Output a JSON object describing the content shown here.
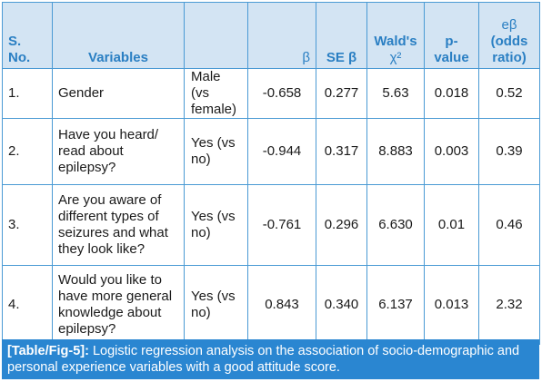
{
  "table": {
    "headers": {
      "sno": "S. No.",
      "variables": "Variables",
      "level": "",
      "beta": "β",
      "se_beta": "SE β",
      "wald_line1": "Wald's",
      "wald_line2": "χ²",
      "pvalue": "p-value",
      "eb_line1": "eβ",
      "eb_line2": "(odds ratio)"
    },
    "rows": [
      {
        "sno": "1.",
        "variable": "Gender",
        "level": "Male (vs female)",
        "beta": "-0.658",
        "se": "0.277",
        "wald": "5.63",
        "p": "0.018",
        "or": "0.52"
      },
      {
        "sno": "2.",
        "variable": "Have you heard/ read about epilepsy?",
        "level": "Yes (vs no)",
        "beta": "-0.944",
        "se": "0.317",
        "wald": "8.883",
        "p": "0.003",
        "or": "0.39"
      },
      {
        "sno": "3.",
        "variable": "Are you aware of different types of seizures and what they look like?",
        "level": "Yes (vs no)",
        "beta": "-0.761",
        "se": "0.296",
        "wald": "6.630",
        "p": "0.01",
        "or": "0.46"
      },
      {
        "sno": "4.",
        "variable": "Would you like to have more general knowledge about epilepsy?",
        "level": "Yes (vs no)",
        "beta": "0.843",
        "se": "0.340",
        "wald": "6.137",
        "p": "0.013",
        "or": "2.32"
      }
    ]
  },
  "caption": {
    "label": "[Table/Fig-5]:",
    "text": "Logistic regression analysis on the association of socio-demographic and personal experience variables with a good attitude score."
  },
  "colors": {
    "header_bg": "#d3e4f3",
    "header_text": "#2a7fc3",
    "border": "#4a9ad4",
    "caption_bg": "#2a86d1",
    "caption_text": "#ffffff"
  }
}
